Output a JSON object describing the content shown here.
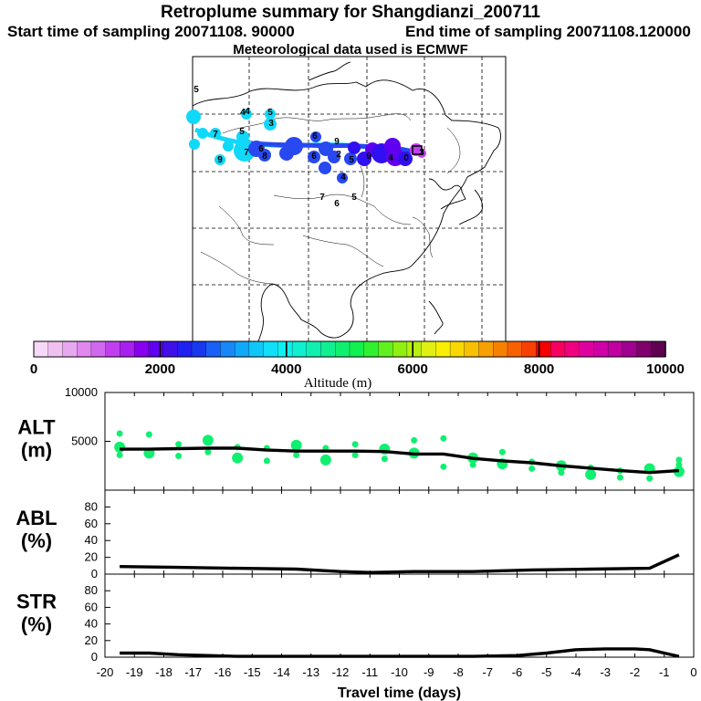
{
  "header": {
    "title": "Retroplume summary for Shangdianzi_200711",
    "start_label": "Start time of sampling 20071108. 90000",
    "end_label": "End time of sampling 20071108.120000",
    "met_label": "Meteorological data used is ECMWF"
  },
  "colorbar": {
    "ticks": [
      0,
      2000,
      4000,
      6000,
      8000,
      10000
    ],
    "tick_labels": [
      "0",
      "2000",
      "4000",
      "6000",
      "8000",
      "10000"
    ],
    "label": "Altitude (m)",
    "colors": [
      "#f8d8f8",
      "#f0c0f0",
      "#e8a8f0",
      "#e088f0",
      "#d068f0",
      "#c040f0",
      "#a820f0",
      "#8800f0",
      "#6000f0",
      "#4010e8",
      "#2020f0",
      "#1838f0",
      "#1860f8",
      "#1888f8",
      "#10a8f8",
      "#10c8f8",
      "#10e0f8",
      "#10f0f0",
      "#10f0d0",
      "#10f0b0",
      "#10f090",
      "#10f070",
      "#10f050",
      "#30f030",
      "#60f020",
      "#90f010",
      "#b8f010",
      "#e0f010",
      "#f8f000",
      "#f8d800",
      "#f8c000",
      "#f8a000",
      "#f88000",
      "#f86000",
      "#f84000",
      "#f80000",
      "#f80060",
      "#f00080",
      "#e000a0",
      "#d000a8",
      "#c000a0",
      "#a00090",
      "#80006c",
      "#600050"
    ]
  },
  "map": {
    "trajectory_colors": [
      "#10d8f8",
      "#2848f0",
      "#3010f0",
      "#6000f0",
      "#c040f0"
    ],
    "labels": [
      {
        "text": "5"
      },
      {
        "text": "4"
      },
      {
        "text": "4"
      },
      {
        "text": "3"
      },
      {
        "text": "5"
      },
      {
        "text": "5"
      },
      {
        "text": "7"
      },
      {
        "text": "7"
      },
      {
        "text": "6"
      },
      {
        "text": "8"
      },
      {
        "text": "9"
      },
      {
        "text": "6"
      },
      {
        "text": "9"
      },
      {
        "text": "2"
      },
      {
        "text": "6"
      },
      {
        "text": "5"
      },
      {
        "text": "4"
      },
      {
        "text": "7"
      },
      {
        "text": "6"
      },
      {
        "text": "5"
      },
      {
        "text": "9"
      },
      {
        "text": "4"
      },
      {
        "text": "0"
      },
      {
        "text": "3"
      }
    ]
  },
  "chart_data": [
    {
      "type": "line",
      "name": "ALT",
      "title": "",
      "ylabel_line1": "ALT",
      "ylabel_line2": "(m)",
      "xlabel": "",
      "xlim": [
        -20,
        0
      ],
      "ylim": [
        0,
        10000
      ],
      "yticks": [
        0,
        5000,
        10000
      ],
      "ytick_labels": [
        "",
        "5000",
        "10000"
      ],
      "x": [
        -19.5,
        -18.5,
        -17.5,
        -16.5,
        -15.5,
        -14.5,
        -13.5,
        -12.5,
        -11.5,
        -10.5,
        -9.5,
        -8.5,
        -7.5,
        -6.5,
        -5.5,
        -4.5,
        -3.5,
        -2.5,
        -1.5,
        -0.5
      ],
      "values": [
        4200,
        4200,
        4250,
        4300,
        4300,
        4100,
        4000,
        4000,
        4000,
        3950,
        3700,
        3700,
        3250,
        3000,
        2800,
        2500,
        2250,
        2000,
        1800,
        2000
      ],
      "scatter_color": "#10f070",
      "scatter": [
        [
          -19.5,
          5800
        ],
        [
          -19.5,
          4400
        ],
        [
          -19.5,
          3600
        ],
        [
          -18.5,
          5700
        ],
        [
          -18.5,
          3800
        ],
        [
          -17.5,
          4700
        ],
        [
          -17.5,
          3500
        ],
        [
          -16.5,
          5100
        ],
        [
          -16.5,
          3900
        ],
        [
          -15.5,
          4400
        ],
        [
          -15.5,
          3300
        ],
        [
          -14.5,
          4300
        ],
        [
          -14.5,
          3000
        ],
        [
          -13.5,
          4600
        ],
        [
          -13.5,
          3600
        ],
        [
          -12.5,
          4300
        ],
        [
          -12.5,
          3100
        ],
        [
          -11.5,
          4700
        ],
        [
          -11.5,
          3600
        ],
        [
          -10.5,
          4200
        ],
        [
          -10.5,
          3200
        ],
        [
          -9.5,
          5100
        ],
        [
          -9.5,
          3800
        ],
        [
          -8.5,
          5300
        ],
        [
          -8.5,
          2400
        ],
        [
          -7.5,
          3300
        ],
        [
          -7.5,
          2600
        ],
        [
          -6.5,
          3900
        ],
        [
          -6.5,
          2700
        ],
        [
          -5.5,
          2900
        ],
        [
          -5.5,
          2200
        ],
        [
          -4.5,
          2500
        ],
        [
          -4.5,
          1800
        ],
        [
          -3.5,
          2300
        ],
        [
          -3.5,
          1600
        ],
        [
          -2.5,
          2000
        ],
        [
          -2.5,
          1300
        ],
        [
          -1.5,
          2200
        ],
        [
          -1.5,
          1200
        ],
        [
          -0.5,
          2600
        ],
        [
          -0.5,
          1900
        ],
        [
          -0.5,
          3100
        ]
      ]
    },
    {
      "type": "line",
      "name": "ABL",
      "ylabel_line1": "ABL",
      "ylabel_line2": "(%)",
      "xlabel": "",
      "xlim": [
        -20,
        0
      ],
      "ylim": [
        0,
        100
      ],
      "yticks": [
        0,
        20,
        40,
        60,
        80
      ],
      "ytick_labels": [
        "0",
        "20",
        "40",
        "60",
        "80"
      ],
      "x": [
        -19.5,
        -17.5,
        -15.5,
        -13.5,
        -12.0,
        -11.0,
        -9.5,
        -7.5,
        -5.5,
        -3.5,
        -1.5,
        -0.5
      ],
      "values": [
        9,
        8,
        7,
        6,
        3,
        2,
        3,
        3,
        5,
        6,
        7,
        23
      ]
    },
    {
      "type": "line",
      "name": "STR",
      "ylabel_line1": "STR",
      "ylabel_line2": "(%)",
      "xlabel": "Travel time (days)",
      "xlim": [
        -20,
        0
      ],
      "ylim": [
        0,
        100
      ],
      "yticks": [
        0,
        20,
        40,
        60,
        80
      ],
      "ytick_labels": [
        "0",
        "20",
        "40",
        "60",
        "80"
      ],
      "xticks": [
        -20,
        -19,
        -18,
        -17,
        -16,
        -15,
        -14,
        -13,
        -12,
        -11,
        -10,
        -9,
        -8,
        -7,
        -6,
        -5,
        -4,
        -3,
        -2,
        -1,
        0
      ],
      "xtick_labels": [
        "-20",
        "-19",
        "-18",
        "-17",
        "-16",
        "-15",
        "-14",
        "-13",
        "-12",
        "-11",
        "-10",
        "-9",
        "-8",
        "-7",
        "-6",
        "-5",
        "-4",
        "-3",
        "-2",
        "-1",
        "0"
      ],
      "x": [
        -19.5,
        -18.5,
        -17.5,
        -16.5,
        -15.5,
        -13.5,
        -11.5,
        -9.5,
        -7.5,
        -6.0,
        -5.0,
        -4.0,
        -3.0,
        -2.0,
        -1.5,
        -1.0,
        -0.5
      ],
      "values": [
        5,
        5,
        3,
        2,
        1,
        1,
        1,
        1,
        1,
        2,
        5,
        9,
        10,
        10,
        9,
        5,
        1
      ]
    }
  ]
}
